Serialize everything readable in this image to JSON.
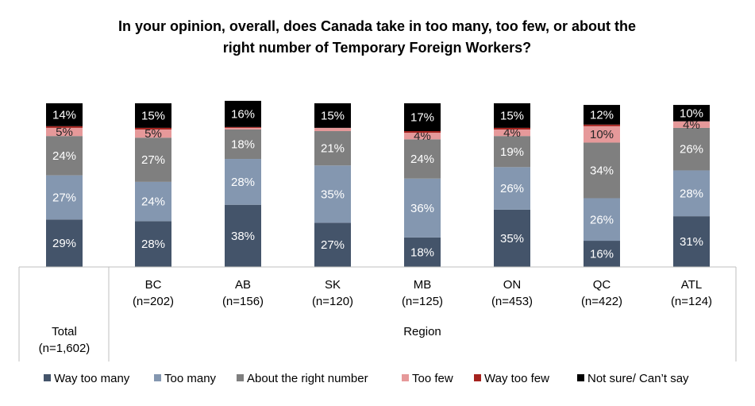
{
  "chart_data": {
    "type": "bar",
    "stacked": true,
    "title": "In your opinion, overall, does Canada take in too many, too few, or about the right number of Temporary Foreign Workers?",
    "title_lines": [
      "In your opinion, overall, does Canada take in too many, too few, or about the",
      "right number of Temporary Foreign Workers?"
    ],
    "categories": [
      {
        "name": "Total",
        "n": "(n=1,602)"
      },
      {
        "name": "BC",
        "n": "(n=202)"
      },
      {
        "name": "AB",
        "n": "(n=156)"
      },
      {
        "name": "SK",
        "n": "(n=120)"
      },
      {
        "name": "MB",
        "n": "(n=125)"
      },
      {
        "name": "ON",
        "n": "(n=453)"
      },
      {
        "name": "QC",
        "n": "(n=422)"
      },
      {
        "name": "ATL",
        "n": "(n=124)"
      }
    ],
    "group_label": "Region",
    "series": [
      {
        "name": "Way too many",
        "color": "#44546a",
        "label_color": "#ffffff",
        "values": [
          29,
          28,
          38,
          27,
          18,
          35,
          16,
          31
        ]
      },
      {
        "name": "Too many",
        "color": "#8497b0",
        "label_color": "#ffffff",
        "values": [
          27,
          24,
          28,
          35,
          36,
          26,
          26,
          28
        ]
      },
      {
        "name": "About the right number",
        "color": "#7f7f7f",
        "label_color": "#ffffff",
        "values": [
          24,
          27,
          18,
          21,
          24,
          19,
          34,
          26
        ]
      },
      {
        "name": "Too few",
        "color": "#e6999a",
        "label_color": "#262626",
        "values": [
          5,
          5,
          1,
          2,
          4,
          4,
          10,
          4
        ]
      },
      {
        "name": "Way too few",
        "color": "#a5221e",
        "label_color": "#ffffff",
        "values": [
          1,
          1,
          0.5,
          0,
          1,
          1,
          1,
          0
        ]
      },
      {
        "name": "Not sure/ Can’t say",
        "color": "#000000",
        "label_color": "#ffffff",
        "values": [
          14,
          15,
          16,
          15,
          17,
          15,
          12,
          10
        ]
      }
    ],
    "data_labels": [
      [
        "29%",
        "27%",
        "24%",
        "5%",
        "",
        "14%"
      ],
      [
        "28%",
        "24%",
        "27%",
        "5%",
        "",
        "15%"
      ],
      [
        "38%",
        "28%",
        "18%",
        "",
        "",
        "16%"
      ],
      [
        "27%",
        "35%",
        "21%",
        "",
        "",
        "15%"
      ],
      [
        "18%",
        "36%",
        "24%",
        "4%",
        "",
        "17%"
      ],
      [
        "35%",
        "26%",
        "19%",
        "4%",
        "",
        "15%"
      ],
      [
        "16%",
        "26%",
        "34%",
        "10%",
        "",
        "12%"
      ],
      [
        "31%",
        "28%",
        "26%",
        "4%",
        "",
        "10%"
      ]
    ],
    "ylim": [
      0,
      100
    ],
    "grid": false,
    "legend_position": "bottom"
  }
}
